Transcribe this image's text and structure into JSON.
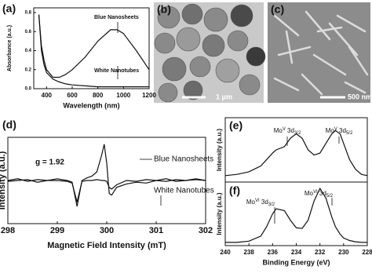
{
  "chart_data": [
    {
      "type": "line",
      "panel_label": "(a)",
      "x_label": "Wavelength (nm)",
      "y_label": "Absorbance (a.u.)",
      "x": [
        340,
        360,
        380,
        400,
        450,
        500,
        550,
        600,
        700,
        800,
        900,
        950,
        1000,
        1100,
        1200
      ],
      "xlim": [
        300,
        1200
      ],
      "xticks": [
        400,
        600,
        800,
        1000,
        1200
      ],
      "ylim": [
        0,
        0.85
      ],
      "yticks": [
        {
          "value": 0,
          "label": "0.0"
        },
        {
          "value": 0.2,
          "label": "0.2"
        },
        {
          "value": 0.4,
          "label": "0.4"
        },
        {
          "value": 0.6,
          "label": "0.6"
        },
        {
          "value": 0.8,
          "label": "0.8"
        }
      ],
      "series": [
        {
          "name": "Blue Nanosheets",
          "color": "#111111",
          "values": [
            0.78,
            0.45,
            0.3,
            0.2,
            0.12,
            0.12,
            0.15,
            0.2,
            0.33,
            0.5,
            0.62,
            0.62,
            0.58,
            0.4,
            0.2
          ]
        },
        {
          "name": "White Nanotubes",
          "color": "#111111",
          "values": [
            0.78,
            0.4,
            0.25,
            0.17,
            0.1,
            0.07,
            0.05,
            0.04,
            0.03,
            0.02,
            0.02,
            0.02,
            0.02,
            0.02,
            0.02
          ]
        }
      ]
    },
    {
      "type": "line",
      "panel_label": "(d)",
      "x_label": "Magnetic Field Intensity (mT)",
      "y_label": "Intensity (a.u.)",
      "x": [
        298,
        298.2,
        298.4,
        298.6,
        298.8,
        299,
        299.2,
        299.3,
        299.4,
        299.5,
        299.6,
        299.7,
        299.8,
        299.9,
        299.95,
        300,
        300.05,
        300.1,
        300.2,
        300.4,
        300.6,
        300.8,
        301,
        301.2,
        301.4,
        301.6,
        301.8,
        302
      ],
      "xlim": [
        298,
        302
      ],
      "xticks": [
        298,
        299,
        300,
        301,
        302
      ],
      "ylim": [
        0,
        1
      ],
      "annotations": [
        "g = 1.92"
      ],
      "series": [
        {
          "name": "Blue Nanosheets",
          "color": "#111111",
          "values": [
            0.5,
            0.52,
            0.49,
            0.51,
            0.5,
            0.52,
            0.5,
            0.48,
            0.2,
            0.5,
            0.53,
            0.55,
            0.6,
            0.8,
            0.92,
            0.7,
            0.35,
            0.33,
            0.42,
            0.46,
            0.48,
            0.47,
            0.5,
            0.49,
            0.51,
            0.5,
            0.52,
            0.5
          ]
        },
        {
          "name": "White Nanotubes",
          "color": "#111111",
          "values": [
            0.49,
            0.5,
            0.51,
            0.48,
            0.5,
            0.5,
            0.49,
            0.47,
            0.25,
            0.49,
            0.5,
            0.5,
            0.51,
            0.5,
            0.5,
            0.49,
            0.42,
            0.4,
            0.45,
            0.5,
            0.49,
            0.51,
            0.5,
            0.52,
            0.49,
            0.5,
            0.51,
            0.5
          ]
        }
      ]
    },
    {
      "type": "line",
      "panel_label": "(e)",
      "y_label": "Intensity (a.u.)",
      "x": [
        240,
        239,
        238,
        237,
        236.5,
        236,
        235.7,
        235,
        234.5,
        234,
        233.5,
        233,
        232.5,
        232,
        231.5,
        231,
        230.7,
        230.3,
        230,
        229.5,
        229,
        228.5,
        228
      ],
      "xlim": [
        240,
        228
      ],
      "ylim": [
        0,
        1
      ],
      "annotations": [
        {
          "base": "Mo",
          "sup": "V",
          "mid": " 3d",
          "sub": "3/2"
        },
        {
          "base": "Mo",
          "sup": "V",
          "mid": " 3d",
          "sub": "5/2"
        }
      ],
      "series": [
        {
          "color": "#111111",
          "values": [
            0.1,
            0.12,
            0.16,
            0.25,
            0.35,
            0.45,
            0.5,
            0.55,
            0.68,
            0.75,
            0.68,
            0.5,
            0.42,
            0.45,
            0.6,
            0.75,
            0.8,
            0.75,
            0.6,
            0.35,
            0.2,
            0.12,
            0.1
          ]
        }
      ]
    },
    {
      "type": "line",
      "panel_label": "(f)",
      "x_label": "Binding Energy (eV)",
      "y_label": "Intensity (a.u.)",
      "x": [
        240,
        239,
        238,
        237,
        236.5,
        236,
        235.7,
        235,
        234.5,
        234,
        233.5,
        233,
        232.5,
        232,
        231.5,
        231,
        230.7,
        230.3,
        230,
        229.5,
        229,
        228.5,
        228
      ],
      "xlim": [
        240,
        228
      ],
      "xticks": [
        240,
        238,
        236,
        234,
        232,
        230,
        228
      ],
      "ylim": [
        0,
        1
      ],
      "annotations": [
        {
          "base": "Mo",
          "sup": "VI",
          "mid": " 3d",
          "sub": "3/2"
        },
        {
          "base": "Mo",
          "sup": "VI",
          "mid": " 3d",
          "sub": "5/2"
        }
      ],
      "series": [
        {
          "color": "#111111",
          "values": [
            0.05,
            0.05,
            0.07,
            0.15,
            0.3,
            0.5,
            0.58,
            0.55,
            0.4,
            0.28,
            0.27,
            0.4,
            0.7,
            0.9,
            0.75,
            0.45,
            0.3,
            0.18,
            0.12,
            0.08,
            0.06,
            0.05,
            0.05
          ]
        }
      ]
    }
  ],
  "images": [
    {
      "panel_label": "(b)",
      "scale_bar": "1 μm"
    },
    {
      "panel_label": "(c)",
      "scale_bar": "500 nm"
    }
  ]
}
